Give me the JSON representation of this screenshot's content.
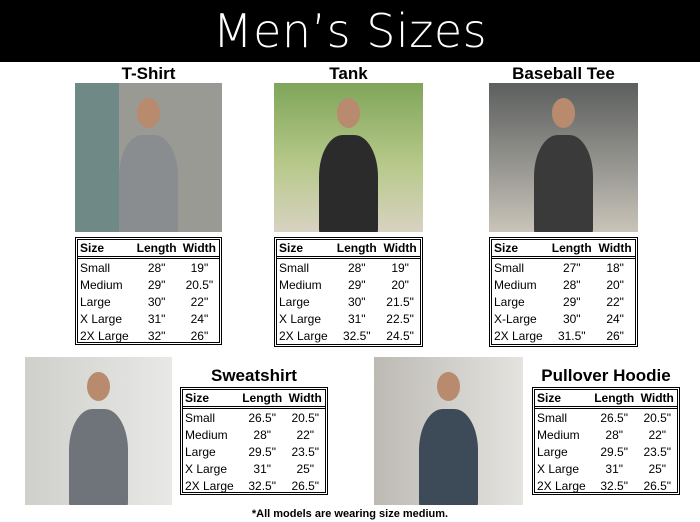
{
  "title": "Men’s Sizes",
  "columns": [
    "Size",
    "Length",
    "Width"
  ],
  "products": [
    {
      "name": "T-Shirt",
      "rows": [
        [
          "Small",
          "28\"",
          "19\""
        ],
        [
          "Medium",
          "29\"",
          "20.5\""
        ],
        [
          "Large",
          "30\"",
          "22\""
        ],
        [
          "X Large",
          "31\"",
          "24\""
        ],
        [
          "2X Large",
          "32\"",
          "26\""
        ]
      ]
    },
    {
      "name": "Tank",
      "rows": [
        [
          "Small",
          "28\"",
          "19\""
        ],
        [
          "Medium",
          "29\"",
          "20\""
        ],
        [
          "Large",
          "30\"",
          "21.5\""
        ],
        [
          "X Large",
          "31\"",
          "22.5\""
        ],
        [
          "2X Large",
          "32.5\"",
          "24.5\""
        ]
      ]
    },
    {
      "name": "Baseball Tee",
      "rows": [
        [
          "Small",
          "27\"",
          "18\""
        ],
        [
          "Medium",
          "28\"",
          "20\""
        ],
        [
          "Large",
          "29\"",
          "22\""
        ],
        [
          "X-Large",
          "30\"",
          "24\""
        ],
        [
          "2X Large",
          "31.5\"",
          "26\""
        ]
      ]
    },
    {
      "name": "Sweatshirt",
      "rows": [
        [
          "Small",
          "26.5\"",
          "20.5\""
        ],
        [
          "Medium",
          "28\"",
          "22\""
        ],
        [
          "Large",
          "29.5\"",
          "23.5\""
        ],
        [
          "X Large",
          "31\"",
          "25\""
        ],
        [
          "2X Large",
          "32.5\"",
          "26.5\""
        ]
      ]
    },
    {
      "name": "Pullover Hoodie",
      "rows": [
        [
          "Small",
          "26.5\"",
          "20.5\""
        ],
        [
          "Medium",
          "28\"",
          "22\""
        ],
        [
          "Large",
          "29.5\"",
          "23.5\""
        ],
        [
          "X Large",
          "31\"",
          "25\""
        ],
        [
          "2X Large",
          "32.5\"",
          "26.5\""
        ]
      ]
    }
  ],
  "footnote": "*All models are wearing size medium."
}
